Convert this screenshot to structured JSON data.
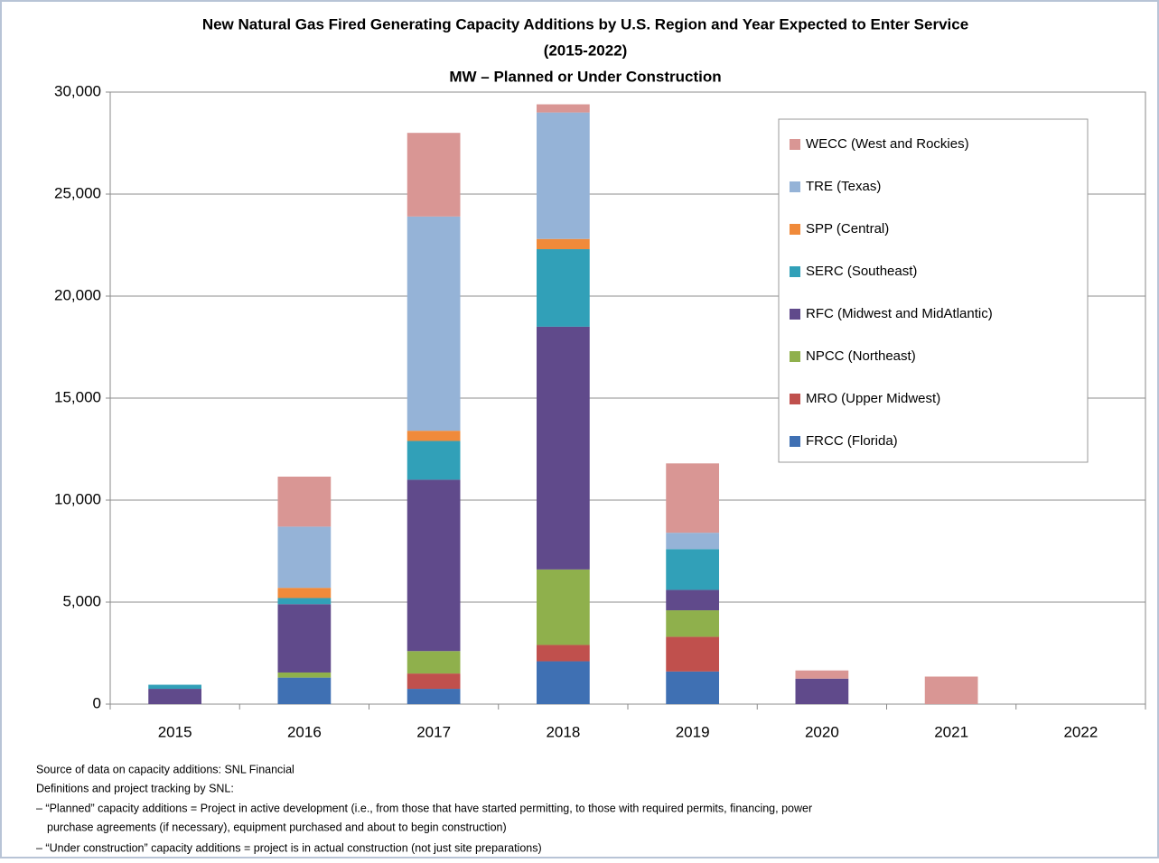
{
  "chart_data": {
    "type": "stacked_bar",
    "title": "New Natural Gas Fired Generating Capacity Additions by U.S. Region and Year Expected to Enter Service",
    "subtitle": "(2015-2022)",
    "y_label": "MW – Planned or Under Construction",
    "categories": [
      "2015",
      "2016",
      "2017",
      "2018",
      "2019",
      "2020",
      "2021",
      "2022"
    ],
    "series": [
      {
        "name": "FRCC (Florida)",
        "color": "#3f70b3",
        "values": [
          0,
          1300,
          750,
          2100,
          1600,
          0,
          0,
          0
        ]
      },
      {
        "name": "MRO (Upper Midwest)",
        "color": "#c0504d",
        "values": [
          0,
          0,
          750,
          800,
          1700,
          0,
          0,
          0
        ]
      },
      {
        "name": "NPCC (Northeast)",
        "color": "#8fb04c",
        "values": [
          0,
          250,
          1100,
          3700,
          1300,
          0,
          0,
          0
        ]
      },
      {
        "name": "RFC (Midwest and MidAtlantic)",
        "color": "#604a8b",
        "values": [
          750,
          3350,
          8400,
          11900,
          1000,
          1250,
          0,
          0
        ]
      },
      {
        "name": "SERC (Southeast)",
        "color": "#31a0b8",
        "values": [
          200,
          300,
          1900,
          3800,
          2000,
          0,
          0,
          0
        ]
      },
      {
        "name": "SPP (Central)",
        "color": "#f08a3a",
        "values": [
          0,
          500,
          500,
          500,
          0,
          0,
          0,
          0
        ]
      },
      {
        "name": "TRE (Texas)",
        "color": "#95b3d7",
        "values": [
          0,
          3000,
          10500,
          6200,
          800,
          0,
          0,
          0
        ]
      },
      {
        "name": "WECC (West and Rockies)",
        "color": "#d99694",
        "values": [
          0,
          2450,
          4100,
          400,
          3400,
          400,
          1350,
          0
        ]
      }
    ],
    "ylim": [
      0,
      30000
    ],
    "yticks": [
      0,
      {
        "value": 5000,
        "label": "5,000"
      },
      {
        "value": 10000,
        "label": "10,000"
      },
      {
        "value": 15000,
        "label": "15,000"
      },
      {
        "value": 20000,
        "label": "20,000"
      },
      {
        "value": 25000,
        "label": "25,000"
      },
      {
        "value": 30000,
        "label": "30,000"
      }
    ],
    "grid": true,
    "legend": "upper right",
    "notes": [
      "Source of data on capacity additions:  SNL Financial",
      "Definitions and project tracking by SNL:",
      "– “Planned” capacity additions = Project in active development (i.e.,  from those that have started permitting, to those with required permits, financing, power",
      "purchase agreements (if necessary), equipment purchased and about to begin construction)",
      "– “Under construction” capacity additions = project is in actual construction (not just site preparations)"
    ]
  }
}
